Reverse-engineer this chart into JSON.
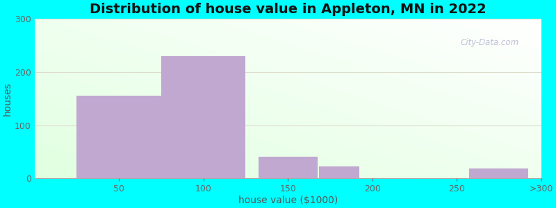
{
  "title": "Distribution of house value in Appleton, MN in 2022",
  "xlabel": "house value ($1000)",
  "ylabel": "houses",
  "background_color": "#00FFFF",
  "bar_color": "#C0A8D0",
  "yticks": [
    0,
    100,
    200,
    300
  ],
  "xtick_labels": [
    "50",
    "100",
    "150",
    "200",
    "250",
    ">300"
  ],
  "bar_heights": [
    155,
    230,
    40,
    22,
    0,
    18
  ],
  "ylim": [
    0,
    300
  ],
  "title_fontsize": 14,
  "label_fontsize": 10,
  "tick_fontsize": 9,
  "tick_color": "#666666",
  "label_color": "#555555",
  "watermark": "City-Data.com",
  "grad_topleft": [
    0.88,
    1.0,
    0.88
  ],
  "grad_bottomright": [
    1.0,
    1.0,
    1.0
  ],
  "grid_color": "#DDDDCC",
  "figsize": [
    8.0,
    3.0
  ],
  "dpi": 100
}
